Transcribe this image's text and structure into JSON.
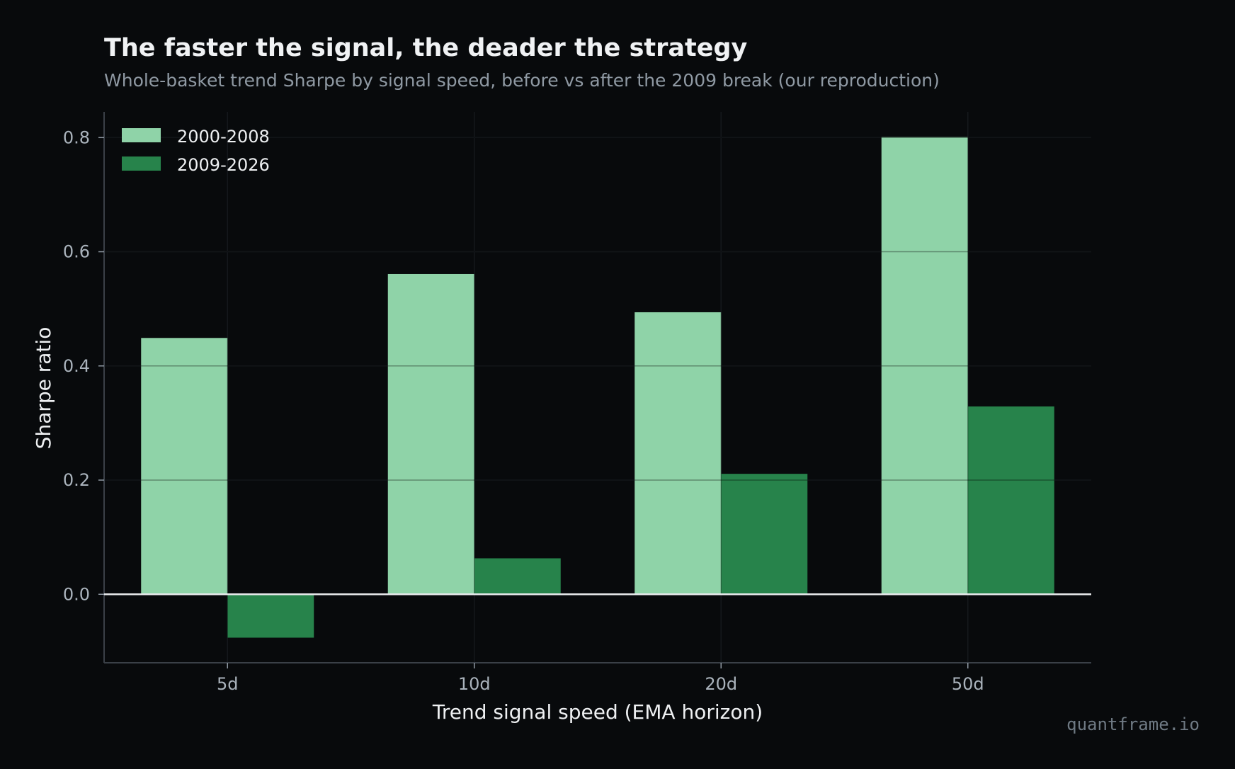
{
  "chart_data": {
    "type": "bar",
    "title": "The faster the signal, the deader the strategy",
    "subtitle": "Whole-basket trend Sharpe by signal speed, before vs after the 2009 break (our reproduction)",
    "xlabel": "Trend signal speed (EMA horizon)",
    "ylabel": "Sharpe ratio",
    "categories": [
      "5d",
      "10d",
      "20d",
      "50d"
    ],
    "series": [
      {
        "name": "2000-2008",
        "values": [
          0.449,
          0.561,
          0.494,
          0.801
        ],
        "color": "#8fd3a8"
      },
      {
        "name": "2009-2026",
        "values": [
          -0.076,
          0.063,
          0.211,
          0.329
        ],
        "color": "#27834b"
      }
    ],
    "ylim": [
      -0.12,
      0.845
    ],
    "yticks": [
      0.0,
      0.2,
      0.4,
      0.6,
      0.8
    ],
    "ytick_labels": [
      "0.0",
      "0.2",
      "0.4",
      "0.6",
      "0.8"
    ],
    "grid": true,
    "legend_position": "top-left",
    "zero_line_color": "#e8eaec",
    "grid_color": "#1c2126",
    "axis_color": "#3a4047",
    "background": "#080a0c"
  },
  "watermark": "quantframe.io"
}
